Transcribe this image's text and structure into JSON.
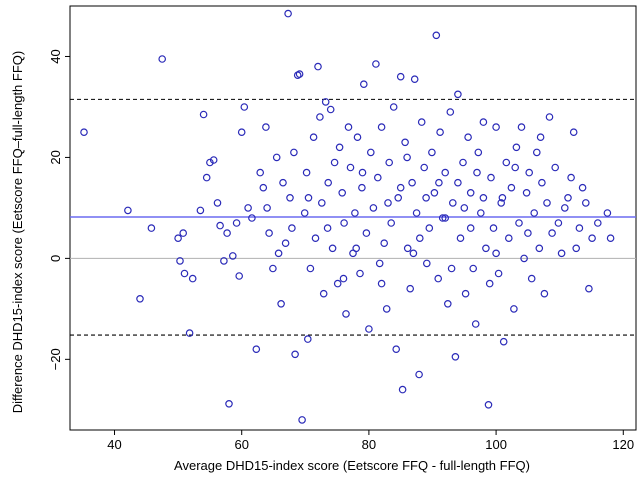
{
  "chart_data": {
    "type": "scatter",
    "title": "",
    "xlabel": "Average DHD15-index score (Eetscore FFQ - full-length FFQ)",
    "ylabel": "Difference DHD15-index score (Eetscore FFQ–full-length FFQ)",
    "xlim": [
      33,
      122
    ],
    "ylim": [
      -34,
      50
    ],
    "xticks": [
      40,
      60,
      80,
      100,
      120
    ],
    "yticks": [
      -20,
      0,
      20,
      40
    ],
    "grid": false,
    "colors": {
      "points": "#2a2ab8",
      "mean_line": "#6b6bf0",
      "zero_line": "#b0b0b0",
      "limit_lines": "#000000"
    },
    "reference_lines": [
      {
        "kind": "mean",
        "y": 8.2,
        "style": "solid"
      },
      {
        "kind": "zero",
        "y": 0,
        "style": "solid"
      },
      {
        "kind": "upper_limit",
        "y": 31.5,
        "style": "dashed"
      },
      {
        "kind": "lower_limit",
        "y": -15.2,
        "style": "dashed"
      }
    ],
    "points": [
      [
        35.2,
        25
      ],
      [
        42.1,
        9.5
      ],
      [
        44.0,
        -8
      ],
      [
        45.8,
        6
      ],
      [
        47.5,
        39.5
      ],
      [
        50.0,
        4
      ],
      [
        50.3,
        -0.5
      ],
      [
        50.8,
        5
      ],
      [
        51.0,
        -3
      ],
      [
        51.8,
        -14.8
      ],
      [
        52.3,
        -4
      ],
      [
        54.0,
        28.5
      ],
      [
        54.5,
        16
      ],
      [
        55.0,
        19
      ],
      [
        55.6,
        19.5
      ],
      [
        53.5,
        9.5
      ],
      [
        56.2,
        11
      ],
      [
        56.6,
        6.5
      ],
      [
        57.2,
        -0.5
      ],
      [
        57.7,
        5
      ],
      [
        58.0,
        -28.8
      ],
      [
        58.6,
        0.5
      ],
      [
        59.2,
        7
      ],
      [
        59.6,
        -3.5
      ],
      [
        60.0,
        25
      ],
      [
        60.4,
        30
      ],
      [
        61.0,
        10
      ],
      [
        61.6,
        8
      ],
      [
        62.3,
        -18
      ],
      [
        62.9,
        17
      ],
      [
        63.4,
        14
      ],
      [
        63.8,
        26
      ],
      [
        64.0,
        10
      ],
      [
        64.3,
        5
      ],
      [
        64.9,
        -2
      ],
      [
        65.5,
        20
      ],
      [
        65.8,
        1
      ],
      [
        66.2,
        -9
      ],
      [
        66.5,
        15
      ],
      [
        66.9,
        3
      ],
      [
        67.3,
        48.5
      ],
      [
        67.6,
        12
      ],
      [
        67.9,
        6
      ],
      [
        68.2,
        21
      ],
      [
        68.4,
        -19
      ],
      [
        68.8,
        36.3
      ],
      [
        69.1,
        36.5
      ],
      [
        69.5,
        -32
      ],
      [
        69.9,
        9
      ],
      [
        70.2,
        17
      ],
      [
        70.4,
        -16
      ],
      [
        70.8,
        -2
      ],
      [
        71.3,
        24
      ],
      [
        71.6,
        4
      ],
      [
        72.0,
        38
      ],
      [
        72.3,
        28
      ],
      [
        72.6,
        11
      ],
      [
        72.9,
        -7
      ],
      [
        73.2,
        31
      ],
      [
        73.6,
        15
      ],
      [
        74.0,
        29.5
      ],
      [
        74.3,
        2
      ],
      [
        74.6,
        19
      ],
      [
        75.1,
        -5
      ],
      [
        75.4,
        22
      ],
      [
        75.8,
        13
      ],
      [
        76.1,
        7
      ],
      [
        76.4,
        -11
      ],
      [
        76.8,
        26
      ],
      [
        77.1,
        18
      ],
      [
        77.5,
        1
      ],
      [
        77.8,
        9
      ],
      [
        78.2,
        24
      ],
      [
        78.6,
        -3
      ],
      [
        78.9,
        14
      ],
      [
        79.2,
        34.5
      ],
      [
        79.6,
        5
      ],
      [
        80.0,
        -14
      ],
      [
        80.3,
        21
      ],
      [
        80.7,
        10
      ],
      [
        81.1,
        38.5
      ],
      [
        81.4,
        16
      ],
      [
        81.7,
        -1
      ],
      [
        82.0,
        26
      ],
      [
        82.4,
        3
      ],
      [
        82.8,
        -10
      ],
      [
        83.2,
        19
      ],
      [
        83.5,
        7
      ],
      [
        83.9,
        30
      ],
      [
        84.3,
        -18
      ],
      [
        84.6,
        12
      ],
      [
        85.0,
        36
      ],
      [
        85.3,
        -26
      ],
      [
        85.7,
        23
      ],
      [
        86.1,
        2
      ],
      [
        86.5,
        -6
      ],
      [
        86.8,
        15
      ],
      [
        87.2,
        35.5
      ],
      [
        87.5,
        9
      ],
      [
        87.9,
        -23
      ],
      [
        88.3,
        27
      ],
      [
        88.7,
        18
      ],
      [
        89.1,
        -1
      ],
      [
        89.5,
        6
      ],
      [
        89.9,
        21
      ],
      [
        90.3,
        13
      ],
      [
        90.6,
        44.2
      ],
      [
        90.9,
        -4
      ],
      [
        91.2,
        25
      ],
      [
        91.6,
        8
      ],
      [
        92.0,
        17
      ],
      [
        92.4,
        -9
      ],
      [
        92.8,
        29
      ],
      [
        93.2,
        11
      ],
      [
        93.6,
        -19.5
      ],
      [
        94.0,
        32.5
      ],
      [
        94.4,
        4
      ],
      [
        94.8,
        19
      ],
      [
        95.2,
        -7
      ],
      [
        95.6,
        24
      ],
      [
        96.0,
        13
      ],
      [
        96.4,
        -2
      ],
      [
        96.8,
        -13
      ],
      [
        97.2,
        21
      ],
      [
        97.6,
        9
      ],
      [
        98.0,
        27
      ],
      [
        98.4,
        2
      ],
      [
        98.8,
        -29
      ],
      [
        99.2,
        16
      ],
      [
        99.6,
        6
      ],
      [
        100.0,
        26
      ],
      [
        100.4,
        -3
      ],
      [
        100.8,
        11
      ],
      [
        101.2,
        -16.5
      ],
      [
        101.6,
        19
      ],
      [
        102.0,
        4
      ],
      [
        102.4,
        14
      ],
      [
        102.8,
        -10
      ],
      [
        103.2,
        22
      ],
      [
        103.6,
        7
      ],
      [
        104.0,
        26
      ],
      [
        104.4,
        0
      ],
      [
        104.8,
        13
      ],
      [
        105.2,
        17
      ],
      [
        105.6,
        -4
      ],
      [
        106.0,
        9
      ],
      [
        106.4,
        21
      ],
      [
        106.8,
        2
      ],
      [
        107.2,
        15
      ],
      [
        107.6,
        -7
      ],
      [
        108.0,
        11
      ],
      [
        108.4,
        28
      ],
      [
        108.8,
        5
      ],
      [
        109.3,
        18
      ],
      [
        109.8,
        7
      ],
      [
        110.3,
        1
      ],
      [
        110.8,
        10
      ],
      [
        111.3,
        12
      ],
      [
        111.8,
        16
      ],
      [
        112.2,
        25
      ],
      [
        112.6,
        2
      ],
      [
        113.1,
        6
      ],
      [
        113.6,
        14
      ],
      [
        114.1,
        11
      ],
      [
        114.6,
        -6
      ],
      [
        115.1,
        4
      ],
      [
        116.0,
        7
      ],
      [
        117.5,
        9
      ],
      [
        118.0,
        4
      ],
      [
        76.0,
        -4
      ],
      [
        79.0,
        17
      ],
      [
        83.0,
        11
      ],
      [
        86.0,
        20
      ],
      [
        88.0,
        4
      ],
      [
        91.0,
        15
      ],
      [
        93.0,
        -2
      ],
      [
        95.0,
        10
      ],
      [
        97.0,
        17
      ],
      [
        99.0,
        -5
      ],
      [
        101.0,
        12
      ],
      [
        103.0,
        18
      ],
      [
        105.0,
        5
      ],
      [
        107.0,
        24
      ],
      [
        70.5,
        12
      ],
      [
        73.5,
        6
      ],
      [
        78.0,
        2
      ],
      [
        82.0,
        -5
      ],
      [
        85.0,
        14
      ],
      [
        87.0,
        1
      ],
      [
        89.0,
        12
      ],
      [
        92.0,
        8
      ],
      [
        94.0,
        15
      ],
      [
        96.0,
        6
      ],
      [
        98.0,
        12
      ],
      [
        100.0,
        1
      ]
    ]
  }
}
